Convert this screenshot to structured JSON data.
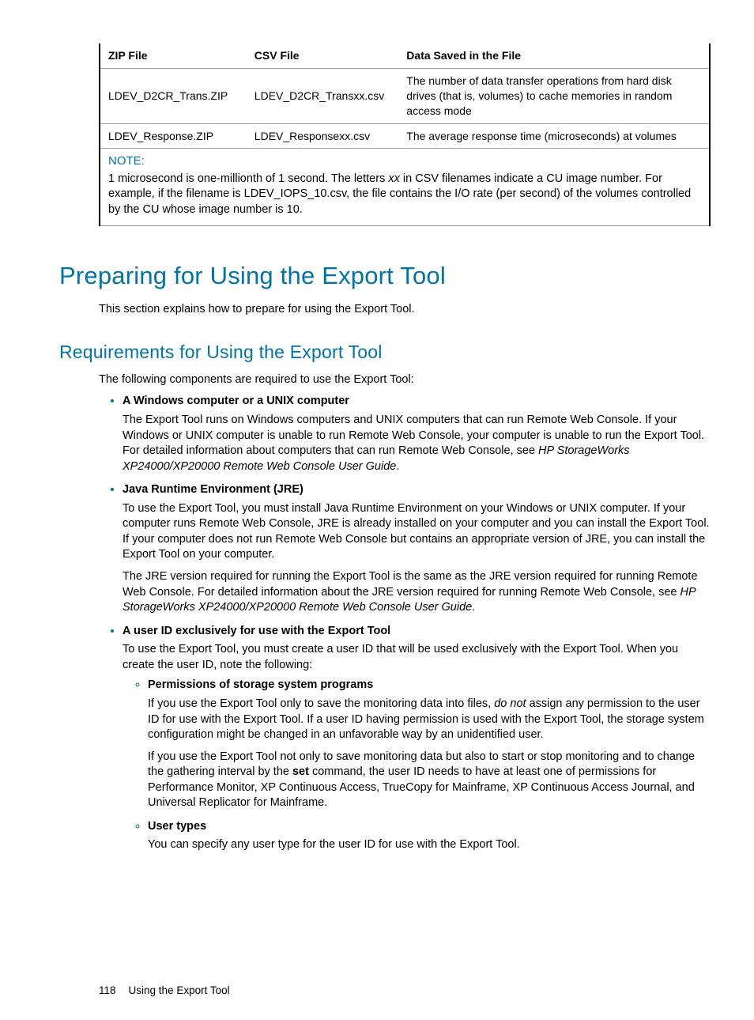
{
  "table": {
    "headers": [
      "ZIP File",
      "CSV File",
      "Data Saved in the File"
    ],
    "rows": [
      [
        "LDEV_D2CR_Trans.ZIP",
        "LDEV_D2CR_Transxx.csv",
        "The number of data transfer operations from hard disk drives (that is, volumes) to cache memories in random access mode"
      ],
      [
        "LDEV_Response.ZIP",
        "LDEV_Responsexx.csv",
        "The average response time (microseconds) at volumes"
      ]
    ],
    "note_label": "NOTE:",
    "note_body_1": "1 microsecond is one-millionth of 1 second. The letters ",
    "note_xx": "xx",
    "note_body_2": " in CSV filenames indicate a CU image number. For example, if the filename is LDEV_IOPS_10.csv, the file contains the I/O rate (per second) of the volumes controlled by the CU whose image number is 10."
  },
  "h1": "Preparing for Using the Export Tool",
  "intro": "This section explains how to prepare for using the Export Tool.",
  "h2": "Requirements for Using the Export Tool",
  "req_intro": "The following components are required to use the Export Tool:",
  "req1": {
    "head": "A Windows computer or a UNIX computer",
    "body_1": "The Export Tool runs on Windows computers and UNIX computers that can run Remote Web Console. If your Windows or UNIX computer is unable to run Remote Web Console, your computer is unable to run the Export Tool. For detailed information about computers that can run Remote Web Console, see ",
    "body_em": "HP StorageWorks XP24000/XP20000 Remote Web Console User Guide",
    "body_2": "."
  },
  "req2": {
    "head": "Java Runtime Environment (JRE)",
    "body1": "To use the Export Tool, you must install Java Runtime Environment on your Windows or UNIX computer. If your computer runs Remote Web Console, JRE is already installed on your computer and you can install the Export Tool. If your computer does not run Remote Web Console but contains an appropriate version of JRE, you can install the Export Tool on your computer.",
    "body2_1": "The JRE version required for running the Export Tool is the same as the JRE version required for running Remote Web Console. For detailed information about the JRE version required for running Remote Web Console, see ",
    "body2_em": "HP StorageWorks XP24000/XP20000 Remote Web Console User Guide",
    "body2_2": "."
  },
  "req3": {
    "head": "A user ID exclusively for use with the Export Tool",
    "body": "To use the Export Tool, you must create a user ID that will be used exclusively with the Export Tool. When you create the user ID, note the following:",
    "sub1": {
      "head": "Permissions of storage system programs",
      "body1_1": "If you use the Export Tool only to save the monitoring data into files, ",
      "body1_em": "do not",
      "body1_2": " assign any permission to the user ID for use with the Export Tool. If a user ID having permission is used with the Export Tool, the storage system configuration might be changed in an unfavorable way by an unidentified user.",
      "body2_1": "If you use the Export Tool not only to save monitoring data but also to start or stop monitoring and to change the gathering interval by the ",
      "body2_bold": "set",
      "body2_2": " command, the user ID needs to have at least one of permissions for Performance Monitor, XP Continuous Access, TrueCopy for Mainframe, XP Continuous Access Journal, and Universal Replicator for Mainframe."
    },
    "sub2": {
      "head": "User types",
      "body": "You can specify any user type for the user ID for use with the Export Tool."
    }
  },
  "footer": {
    "page": "118",
    "section": "Using the Export Tool"
  }
}
